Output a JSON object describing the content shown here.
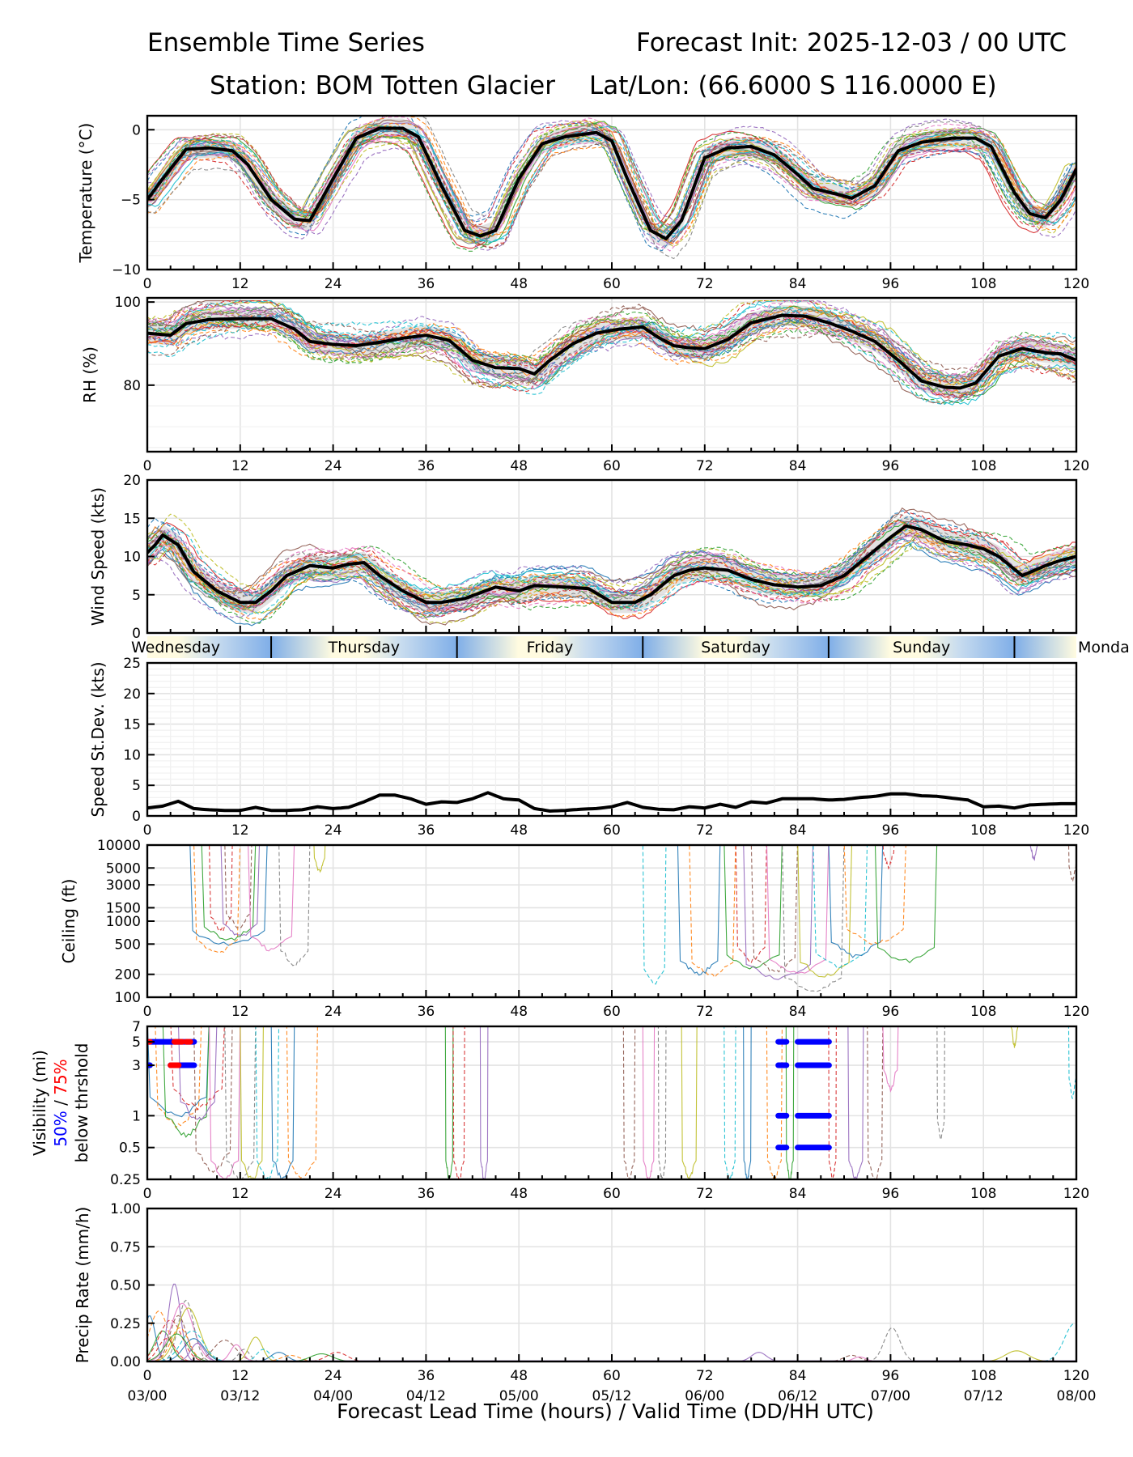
{
  "header": {
    "title_left": "Ensemble Time Series",
    "title_right": "Forecast Init: 2025-12-03 / 00 UTC",
    "station": "Station: BOM Totten Glacier",
    "latlon": "Lat/Lon: (66.6000 S 116.0000 E)"
  },
  "xaxis": {
    "label": "Forecast Lead Time (hours) / Valid Time (DD/HH UTC)",
    "ticks": [
      0,
      12,
      24,
      36,
      48,
      60,
      72,
      84,
      96,
      108,
      120
    ],
    "valid_labels": [
      "03/00",
      "03/12",
      "04/00",
      "04/12",
      "05/00",
      "05/12",
      "06/00",
      "06/12",
      "07/00",
      "07/12",
      "08/00"
    ],
    "range": [
      0,
      120
    ]
  },
  "day_band": {
    "days": [
      {
        "name": "Wednesday",
        "start": -8,
        "end": 16
      },
      {
        "name": "Thursday",
        "start": 16,
        "end": 40
      },
      {
        "name": "Friday",
        "start": 40,
        "end": 64
      },
      {
        "name": "Saturday",
        "start": 64,
        "end": 88
      },
      {
        "name": "Sunday",
        "start": 88,
        "end": 112
      },
      {
        "name": "Monda",
        "start": 112,
        "end": 136
      }
    ],
    "night_color": "#7faee8",
    "day_color": "#fffbe0"
  },
  "member_colors": [
    "#1f77b4",
    "#ff7f0e",
    "#2ca02c",
    "#d62728",
    "#9467bd",
    "#8c564b",
    "#e377c2",
    "#7f7f7f",
    "#bcbd22",
    "#17becf"
  ],
  "chart_data": [
    {
      "id": "temperature",
      "type": "line",
      "ylabel": "Temperature (°C)",
      "ylim": [
        -10,
        1
      ],
      "yticks": [
        0,
        -5,
        -10
      ],
      "grid": true,
      "mean": {
        "x": [
          0,
          2,
          5,
          8,
          11,
          13,
          16,
          19,
          21,
          24,
          27,
          30,
          33,
          35,
          38,
          41,
          43,
          45,
          48,
          51,
          54,
          58,
          60,
          62,
          65,
          67,
          69,
          72,
          75,
          78,
          81,
          84,
          86,
          89,
          91,
          94,
          97,
          100,
          104,
          107,
          109,
          112,
          114,
          116,
          118,
          120
        ],
        "y": [
          -5,
          -3.5,
          -1.4,
          -1.3,
          -1.5,
          -2.5,
          -5,
          -6.4,
          -6.5,
          -3.5,
          -0.6,
          0.1,
          0.1,
          -0.5,
          -4,
          -7.2,
          -7.6,
          -7.2,
          -3.5,
          -1,
          -0.5,
          -0.2,
          -0.8,
          -3.5,
          -7.2,
          -7.8,
          -6.5,
          -2,
          -1.3,
          -1.2,
          -1.8,
          -3.2,
          -4.2,
          -4.6,
          -4.9,
          -4,
          -1.5,
          -0.9,
          -0.6,
          -0.6,
          -1.2,
          -4.5,
          -6,
          -6.3,
          -5,
          -2.8
        ]
      },
      "spread": 1.0,
      "members": 30
    },
    {
      "id": "rh",
      "type": "line",
      "ylabel": "RH (%)",
      "ylim": [
        64,
        101
      ],
      "yticks": [
        100,
        80
      ],
      "grid": true,
      "mean": {
        "x": [
          0,
          3,
          5,
          8,
          12,
          16,
          19,
          21,
          24,
          27,
          30,
          33,
          36,
          39,
          42,
          45,
          48,
          50,
          52,
          55,
          58,
          61,
          64,
          66,
          68,
          70,
          72,
          75,
          78,
          82,
          85,
          88,
          91,
          94,
          97,
          100,
          103,
          105,
          107,
          110,
          113,
          116,
          118,
          120
        ],
        "y": [
          92.5,
          92,
          94.8,
          95.8,
          96,
          96,
          93.5,
          90.5,
          89.8,
          89.5,
          90.3,
          91.3,
          92,
          90.8,
          86,
          84.2,
          84,
          82.7,
          86,
          90,
          92.5,
          93.5,
          94,
          91.5,
          89.5,
          89,
          88.8,
          91,
          95,
          96.8,
          96.6,
          95,
          93,
          90.5,
          86,
          81,
          79.5,
          79.3,
          80.5,
          87,
          88.8,
          87.8,
          87.5,
          86
        ]
      },
      "spread": 3.5,
      "members": 30
    },
    {
      "id": "wind_speed",
      "type": "line",
      "ylabel": "Wind Speed (kts)",
      "ylim": [
        0,
        20
      ],
      "yticks": [
        0,
        5,
        10,
        15,
        20
      ],
      "grid": true,
      "mean": {
        "x": [
          0,
          1,
          2,
          4,
          6,
          9,
          12,
          14,
          16,
          18,
          21,
          24,
          26,
          28,
          30,
          33,
          36,
          38,
          41,
          45,
          48,
          50,
          54,
          57,
          60,
          63,
          65,
          68,
          70,
          72,
          75,
          78,
          81,
          84,
          87,
          90,
          93,
          96,
          98,
          100,
          103,
          106,
          108,
          110,
          113,
          116,
          118,
          120
        ],
        "y": [
          10.5,
          11.5,
          12.8,
          11.5,
          8,
          5.5,
          4,
          4,
          5.5,
          7.5,
          8.8,
          8.5,
          9,
          9.2,
          7.5,
          5.5,
          4,
          4,
          4.5,
          6,
          5.5,
          6.2,
          6,
          5.8,
          4,
          4,
          5,
          7.5,
          8.2,
          8.5,
          8.2,
          7,
          6.3,
          6,
          6.2,
          7.5,
          10,
          12.5,
          14,
          13.5,
          12,
          11.5,
          11,
          10,
          7.5,
          8.8,
          9.5,
          10
        ]
      },
      "spread": 2.0,
      "members": 30
    },
    {
      "id": "speed_stdev",
      "type": "line",
      "ylabel": "Speed St.Dev. (kts)",
      "ylim": [
        0,
        25
      ],
      "yticks": [
        0,
        5,
        10,
        15,
        20,
        25
      ],
      "grid": true,
      "mean": {
        "x": [
          0,
          2,
          4,
          6,
          8,
          10,
          12,
          14,
          16,
          18,
          20,
          22,
          24,
          26,
          28,
          30,
          32,
          34,
          36,
          38,
          40,
          42,
          44,
          46,
          48,
          50,
          52,
          54,
          56,
          58,
          60,
          62,
          64,
          66,
          68,
          70,
          72,
          74,
          76,
          78,
          80,
          82,
          84,
          86,
          88,
          90,
          92,
          94,
          96,
          98,
          100,
          102,
          104,
          106,
          108,
          110,
          112,
          114,
          116,
          118,
          120
        ],
        "y": [
          1.3,
          1.6,
          2.4,
          1.2,
          1,
          0.9,
          0.9,
          1.4,
          0.9,
          0.9,
          1,
          1.5,
          1.2,
          1.4,
          2.3,
          3.4,
          3.4,
          2.8,
          1.9,
          2.3,
          2.2,
          2.8,
          3.8,
          2.8,
          2.6,
          1.2,
          0.8,
          0.9,
          1.1,
          1.2,
          1.5,
          2.2,
          1.4,
          1.1,
          1,
          1.5,
          1.3,
          1.9,
          1.4,
          2.3,
          2.1,
          2.8,
          2.8,
          2.8,
          2.6,
          2.7,
          3,
          3.2,
          3.6,
          3.6,
          3.3,
          3.2,
          2.9,
          2.6,
          1.5,
          1.6,
          1.3,
          1.8,
          1.9,
          2,
          2
        ]
      },
      "spread": 0,
      "members": 0
    },
    {
      "id": "ceiling",
      "type": "line",
      "ylabel": "Ceiling (ft)",
      "yscale": "log",
      "ylim": [
        100,
        10000
      ],
      "yticks": [
        10000,
        5000,
        3000,
        1500,
        1000,
        500,
        200,
        100
      ],
      "grid": true,
      "events": [
        {
          "start": 5.5,
          "end": 15.5,
          "min": 500
        },
        {
          "start": 6,
          "end": 12,
          "min": 380
        },
        {
          "start": 7,
          "end": 14,
          "min": 560
        },
        {
          "start": 8,
          "end": 11,
          "min": 760
        },
        {
          "start": 9.5,
          "end": 14.5,
          "min": 620
        },
        {
          "start": 10,
          "end": 13.5,
          "min": 840
        },
        {
          "start": 13,
          "end": 19,
          "min": 420
        },
        {
          "start": 17,
          "end": 21,
          "min": 270
        },
        {
          "start": 21.5,
          "end": 23,
          "min": 4500
        },
        {
          "start": 64,
          "end": 67,
          "min": 155
        },
        {
          "start": 68.5,
          "end": 74,
          "min": 200
        },
        {
          "start": 70,
          "end": 76,
          "min": 190
        },
        {
          "start": 74.5,
          "end": 82,
          "min": 240
        },
        {
          "start": 76,
          "end": 80,
          "min": 300
        },
        {
          "start": 77,
          "end": 86,
          "min": 180
        },
        {
          "start": 78,
          "end": 84,
          "min": 220
        },
        {
          "start": 80,
          "end": 88,
          "min": 210
        },
        {
          "start": 82,
          "end": 90,
          "min": 120
        },
        {
          "start": 84,
          "end": 91,
          "min": 190
        },
        {
          "start": 86,
          "end": 93,
          "min": 250
        },
        {
          "start": 88,
          "end": 95,
          "min": 350
        },
        {
          "start": 90,
          "end": 98,
          "min": 520
        },
        {
          "start": 94,
          "end": 102,
          "min": 300
        },
        {
          "start": 95,
          "end": 96.5,
          "min": 5200
        },
        {
          "start": 114,
          "end": 115,
          "min": 6500
        },
        {
          "start": 119,
          "end": 120,
          "min": 3500
        }
      ],
      "members": 26
    },
    {
      "id": "visibility",
      "type": "line",
      "ylabel": "Visibility (mi)",
      "ylabel_2a": "50%",
      "ylabel_2b": " / ",
      "ylabel_2c": "75%",
      "ylabel_3": "below thrshold",
      "yscale": "log",
      "ylim": [
        0.25,
        7
      ],
      "yticks": [
        7,
        5,
        3,
        1,
        0.5,
        0.25
      ],
      "grid": true,
      "events": [
        {
          "start": 0,
          "end": 8,
          "min": 1.0
        },
        {
          "start": 1,
          "end": 7,
          "min": 0.8
        },
        {
          "start": 2,
          "end": 8,
          "min": 0.65
        },
        {
          "start": 3,
          "end": 10,
          "min": 1.2
        },
        {
          "start": 4,
          "end": 9,
          "min": 0.9
        },
        {
          "start": 6,
          "end": 11,
          "min": 0.3
        },
        {
          "start": 8,
          "end": 12,
          "min": 0.25
        },
        {
          "start": 10,
          "end": 14,
          "min": 0.25
        },
        {
          "start": 12,
          "end": 15,
          "min": 0.25
        },
        {
          "start": 14,
          "end": 17,
          "min": 0.25
        },
        {
          "start": 16,
          "end": 19,
          "min": 0.25
        },
        {
          "start": 18,
          "end": 22,
          "min": 0.25
        },
        {
          "start": 38.5,
          "end": 39.5,
          "min": 0.25
        },
        {
          "start": 39.5,
          "end": 41,
          "min": 0.25
        },
        {
          "start": 43,
          "end": 44,
          "min": 0.25
        },
        {
          "start": 61.5,
          "end": 63,
          "min": 0.25
        },
        {
          "start": 64,
          "end": 65.5,
          "min": 0.25
        },
        {
          "start": 66,
          "end": 67,
          "min": 0.25
        },
        {
          "start": 69,
          "end": 71,
          "min": 0.25
        },
        {
          "start": 74.5,
          "end": 76,
          "min": 0.25
        },
        {
          "start": 77,
          "end": 78,
          "min": 0.25
        },
        {
          "start": 80,
          "end": 82,
          "min": 0.25
        },
        {
          "start": 82.5,
          "end": 83.5,
          "min": 0.25
        },
        {
          "start": 88,
          "end": 89,
          "min": 0.25
        },
        {
          "start": 90.5,
          "end": 92.5,
          "min": 0.25
        },
        {
          "start": 93,
          "end": 95,
          "min": 0.25
        },
        {
          "start": 95,
          "end": 97,
          "min": 1.8
        },
        {
          "start": 102,
          "end": 103,
          "min": 0.6
        },
        {
          "start": 111.5,
          "end": 112.5,
          "min": 4.6
        },
        {
          "start": 119,
          "end": 120,
          "min": 1.5
        }
      ],
      "threshold_50": [
        {
          "level": 5,
          "start": 0,
          "end": 6
        },
        {
          "level": 3,
          "start": 0,
          "end": 0.3
        },
        {
          "level": 3,
          "start": 3,
          "end": 6
        },
        {
          "level": 5,
          "start": 81.5,
          "end": 82.5
        },
        {
          "level": 5,
          "start": 84,
          "end": 88
        },
        {
          "level": 3,
          "start": 81.5,
          "end": 82.5
        },
        {
          "level": 3,
          "start": 84,
          "end": 88
        },
        {
          "level": 1,
          "start": 81.5,
          "end": 82.5
        },
        {
          "level": 1,
          "start": 84,
          "end": 88
        },
        {
          "level": 0.5,
          "start": 81.5,
          "end": 82.5
        },
        {
          "level": 0.5,
          "start": 84,
          "end": 88
        }
      ],
      "threshold_75": [
        {
          "level": 5,
          "start": 0,
          "end": 0.3
        },
        {
          "level": 5,
          "start": 3.5,
          "end": 4.5
        },
        {
          "level": 5,
          "start": 5,
          "end": 5.5
        },
        {
          "level": 3,
          "start": 3,
          "end": 4
        }
      ],
      "threshold_50_color": "#0000ff",
      "threshold_75_color": "#ff0000",
      "members": 30
    },
    {
      "id": "precip_rate",
      "type": "line",
      "ylabel": "Precip Rate (mm/h)",
      "ylim": [
        0,
        1
      ],
      "yticks": [
        0,
        0.25,
        0.5,
        0.75,
        1
      ],
      "ytick_labels": [
        "0.00",
        "0.25",
        "0.50",
        "0.75",
        "1.00"
      ],
      "grid": true,
      "peaks": [
        {
          "x": 0.3,
          "v": 0.3
        },
        {
          "x": 1.5,
          "v": 0.33
        },
        {
          "x": 2,
          "v": 0.2
        },
        {
          "x": 3,
          "v": 0.27
        },
        {
          "x": 3.5,
          "v": 0.51
        },
        {
          "x": 4,
          "v": 0.3
        },
        {
          "x": 4.5,
          "v": 0.38
        },
        {
          "x": 5,
          "v": 0.4
        },
        {
          "x": 5.3,
          "v": 0.35
        },
        {
          "x": 5.8,
          "v": 0.2
        },
        {
          "x": 6,
          "v": 0.15
        },
        {
          "x": 4.2,
          "v": 0.22
        },
        {
          "x": 3.8,
          "v": 0.18
        },
        {
          "x": 2.5,
          "v": 0.15
        },
        {
          "x": 6.5,
          "v": 0.12
        },
        {
          "x": 10,
          "v": 0.14
        },
        {
          "x": 11.5,
          "v": 0.11
        },
        {
          "x": 12.5,
          "v": 0.08
        },
        {
          "x": 14,
          "v": 0.16
        },
        {
          "x": 15,
          "v": 0.08
        },
        {
          "x": 17,
          "v": 0.06
        },
        {
          "x": 18.5,
          "v": 0.04
        },
        {
          "x": 22.5,
          "v": 0.05
        },
        {
          "x": 24.5,
          "v": 0.06
        },
        {
          "x": 79,
          "v": 0.06
        },
        {
          "x": 91,
          "v": 0.04
        },
        {
          "x": 92,
          "v": 0.03
        },
        {
          "x": 96.2,
          "v": 0.22
        },
        {
          "x": 112.3,
          "v": 0.07
        },
        {
          "x": 119.8,
          "v": 0.25
        }
      ],
      "members": 30
    }
  ]
}
